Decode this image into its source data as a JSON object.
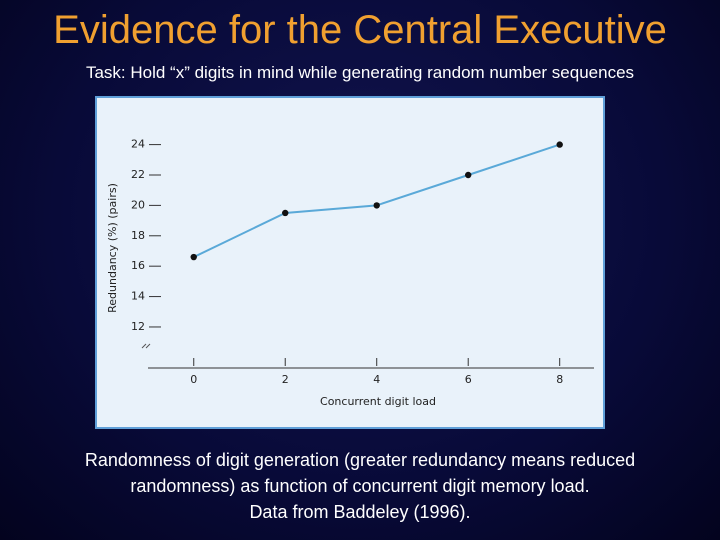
{
  "title": "Evidence for the Central Executive",
  "task": "Task:  Hold “x” digits in mind while generating random number sequences",
  "caption": [
    "Randomness of digit generation (greater redundancy means reduced",
    "randomness) as function of concurrent digit memory load.",
    "Data from Baddeley (1996)."
  ],
  "chart_data": {
    "type": "line",
    "xlabel": "Concurrent digit load",
    "ylabel": "Redundancy (%) (pairs)",
    "x": [
      0,
      2,
      4,
      6,
      8
    ],
    "series": [
      {
        "name": null,
        "color": "#5aa9d8",
        "values": [
          16.6,
          19.5,
          20.0,
          22.0,
          24.0
        ]
      }
    ],
    "xlim": [
      -1,
      8.75
    ],
    "ylim": [
      9.3,
      24.5
    ],
    "xticks": [
      0,
      2,
      4,
      6,
      8
    ],
    "yticks": [
      12,
      14,
      16,
      18,
      20,
      22,
      24
    ]
  }
}
